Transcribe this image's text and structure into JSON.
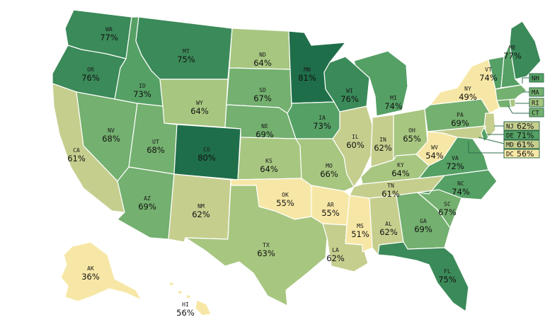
{
  "colors": {
    "c49_56": "#f7e7a6",
    "c60_62": "#c6ce8e",
    "c63_66": "#a7c680",
    "c67_70": "#74b06f",
    "c71_74": "#55a065",
    "c75_79": "#3b8a59",
    "c80_plus": "#1f6e4a"
  },
  "states": [
    {
      "abbr": "WA",
      "value": "77%"
    },
    {
      "abbr": "OR",
      "value": "76%"
    },
    {
      "abbr": "CA",
      "value": "61%"
    },
    {
      "abbr": "NV",
      "value": "68%"
    },
    {
      "abbr": "ID",
      "value": "73%"
    },
    {
      "abbr": "MT",
      "value": "75%"
    },
    {
      "abbr": "WY",
      "value": "64%"
    },
    {
      "abbr": "UT",
      "value": "68%"
    },
    {
      "abbr": "AZ",
      "value": "69%"
    },
    {
      "abbr": "CO",
      "value": "80%"
    },
    {
      "abbr": "NM",
      "value": "62%"
    },
    {
      "abbr": "ND",
      "value": "64%"
    },
    {
      "abbr": "SD",
      "value": "67%"
    },
    {
      "abbr": "NE",
      "value": "69%"
    },
    {
      "abbr": "KS",
      "value": "64%"
    },
    {
      "abbr": "OK",
      "value": "55%"
    },
    {
      "abbr": "TX",
      "value": "63%"
    },
    {
      "abbr": "MN",
      "value": "81%"
    },
    {
      "abbr": "IA",
      "value": "73%"
    },
    {
      "abbr": "MO",
      "value": "66%"
    },
    {
      "abbr": "AR",
      "value": "55%"
    },
    {
      "abbr": "LA",
      "value": "62%"
    },
    {
      "abbr": "WI",
      "value": "76%"
    },
    {
      "abbr": "IL",
      "value": "60%"
    },
    {
      "abbr": "MI",
      "value": "74%"
    },
    {
      "abbr": "IN",
      "value": "62%"
    },
    {
      "abbr": "OH",
      "value": "65%"
    },
    {
      "abbr": "KY",
      "value": "64%"
    },
    {
      "abbr": "TN",
      "value": "61%"
    },
    {
      "abbr": "MS",
      "value": "51%"
    },
    {
      "abbr": "AL",
      "value": "62%"
    },
    {
      "abbr": "GA",
      "value": "69%"
    },
    {
      "abbr": "FL",
      "value": "75%"
    },
    {
      "abbr": "SC",
      "value": "67%"
    },
    {
      "abbr": "NC",
      "value": "74%"
    },
    {
      "abbr": "VA",
      "value": "72%"
    },
    {
      "abbr": "WV",
      "value": "54%"
    },
    {
      "abbr": "PA",
      "value": "69%"
    },
    {
      "abbr": "NY",
      "value": "49%"
    },
    {
      "abbr": "VT",
      "value": "74%"
    },
    {
      "abbr": "ME",
      "value": "77%"
    },
    {
      "abbr": "AK",
      "value": "36%"
    },
    {
      "abbr": "HI",
      "value": "56%"
    }
  ],
  "callouts": [
    {
      "abbr": "NH",
      "value": ""
    },
    {
      "abbr": "MA",
      "value": ""
    },
    {
      "abbr": "RI",
      "value": ""
    },
    {
      "abbr": "CT",
      "value": ""
    },
    {
      "abbr": "NJ",
      "value": "62%"
    },
    {
      "abbr": "DE",
      "value": "71%"
    },
    {
      "abbr": "MD",
      "value": "61%"
    },
    {
      "abbr": "DC",
      "value": "56%"
    }
  ]
}
